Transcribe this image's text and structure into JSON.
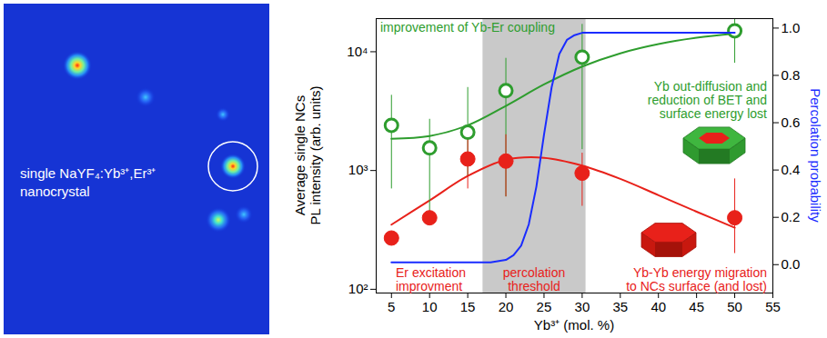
{
  "image_panel": {
    "caption": [
      "single NaYF₄:Yb³⁺,Er³⁺",
      "nanocrystal"
    ]
  },
  "chart_data": {
    "type": "scatter",
    "xlabel": "Yb³⁺ (mol. %)",
    "ylabel": [
      "Average single NCs",
      "PL intensity (arb. units)"
    ],
    "y2label": "Percolation probability",
    "log": "y",
    "xlim": [
      3,
      55
    ],
    "xticks": [
      5,
      10,
      15,
      20,
      25,
      30,
      35,
      40,
      45,
      50,
      55
    ],
    "ylim": [
      93,
      19000
    ],
    "yticks": [
      {
        "value": 100,
        "label": "10²"
      },
      {
        "value": 1000,
        "label": "10³"
      },
      {
        "value": 10000,
        "label": "10⁴"
      }
    ],
    "y2lim": [
      -0.12,
      1.04
    ],
    "y2ticks": [
      {
        "value": 0,
        "label": "0.0"
      },
      {
        "value": 0.2,
        "label": "0.2"
      },
      {
        "value": 0.4,
        "label": "0.4"
      },
      {
        "value": 0.6,
        "label": "0.6"
      },
      {
        "value": 0.8,
        "label": "0.8"
      },
      {
        "value": 1,
        "label": "1.0"
      }
    ],
    "shaded_range": [
      17,
      30.5
    ],
    "series": [
      {
        "type": "scatter",
        "marker": "circle_open",
        "color": "#2e9d2e",
        "x": [
          5,
          10,
          15,
          20,
          30,
          50
        ],
        "values": [
          2400,
          1550,
          2100,
          4700,
          9000,
          15000
        ],
        "error_low": [
          700,
          450,
          900,
          600,
          1500,
          8000
        ],
        "error_high": [
          4300,
          2700,
          5000,
          8800,
          17000,
          22000
        ]
      },
      {
        "type": "scatter",
        "marker": "circle",
        "color": "#e8211a",
        "x": [
          5,
          10,
          15,
          20,
          30,
          50
        ],
        "values": [
          270,
          400,
          1250,
          1200,
          950,
          400
        ],
        "error_low": [
          250,
          350,
          700,
          600,
          500,
          200
        ],
        "error_high": [
          300,
          450,
          1800,
          2000,
          1400,
          850
        ]
      },
      {
        "type": "line",
        "line_style": "solid",
        "color": "#2e9d2e",
        "x": [
          5,
          10,
          15,
          20,
          25,
          30,
          35,
          40,
          45,
          50
        ],
        "values": [
          1850,
          1950,
          2400,
          3500,
          5300,
          7500,
          9700,
          11600,
          13100,
          14200
        ]
      },
      {
        "type": "line",
        "line_style": "solid",
        "color": "#e8211a",
        "x": [
          5,
          10,
          15,
          20,
          25,
          30,
          35,
          40,
          45,
          50
        ],
        "values": [
          350,
          560,
          900,
          1230,
          1280,
          1100,
          850,
          620,
          450,
          330
        ]
      },
      {
        "type": "line",
        "line_style": "solid",
        "color": "#1a2cff",
        "axis": "y2",
        "x": [
          5,
          15,
          18,
          20,
          21,
          22,
          23,
          24,
          25,
          26,
          27,
          28,
          29,
          30,
          50
        ],
        "values": [
          0.01,
          0.01,
          0.01,
          0.02,
          0.04,
          0.08,
          0.17,
          0.33,
          0.55,
          0.75,
          0.89,
          0.95,
          0.97,
          0.98,
          0.98
        ]
      }
    ],
    "annotations": [
      {
        "text": [
          "improvement of Yb-Er coupling"
        ],
        "color": "#2e9d2e"
      },
      {
        "text": [
          "Yb out-diffusion and",
          "reduction of BET and",
          "surface energy lost"
        ],
        "color": "#2e9d2e"
      },
      {
        "text": [
          "Er excitation",
          "improvment"
        ],
        "color": "#e8211a"
      },
      {
        "text": [
          "percolation",
          "threshold"
        ],
        "color": "#e8211a"
      },
      {
        "text": [
          "Yb-Yb energy migration",
          "to NCs surface (and lost)"
        ],
        "color": "#e8211a"
      }
    ]
  }
}
